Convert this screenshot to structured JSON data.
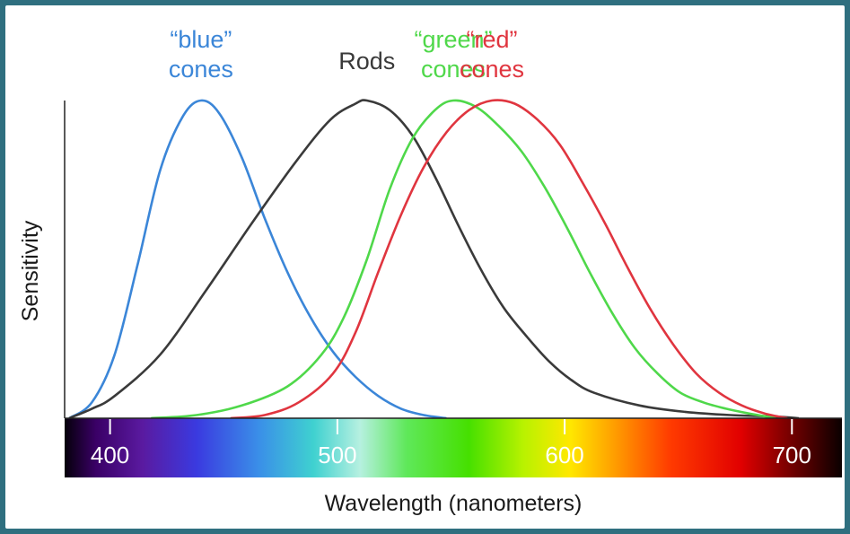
{
  "chart_data": {
    "type": "line",
    "title": "",
    "xlabel": "Wavelength (nanometers)",
    "ylabel": "Sensitivity",
    "xlim": [
      380,
      722
    ],
    "ylim": [
      0,
      1
    ],
    "grid": false,
    "legend": "labels-above-curves",
    "x_ticks": [
      400,
      500,
      600,
      700
    ],
    "x_tick_labels": [
      "400",
      "500",
      "600",
      "700"
    ],
    "spectrum_bar": true,
    "series": [
      {
        "key": "blue",
        "label_lines": [
          "“blue”",
          "cones"
        ],
        "color": "#3b86d8",
        "points": [
          [
            382,
            0
          ],
          [
            392,
            0.05
          ],
          [
            402,
            0.2
          ],
          [
            412,
            0.48
          ],
          [
            422,
            0.78
          ],
          [
            432,
            0.95
          ],
          [
            440,
            1.0
          ],
          [
            448,
            0.96
          ],
          [
            458,
            0.82
          ],
          [
            468,
            0.63
          ],
          [
            478,
            0.46
          ],
          [
            488,
            0.32
          ],
          [
            498,
            0.21
          ],
          [
            508,
            0.13
          ],
          [
            518,
            0.07
          ],
          [
            528,
            0.03
          ],
          [
            538,
            0.01
          ],
          [
            548,
            0
          ]
        ]
      },
      {
        "key": "rods",
        "label_lines": [
          "Rods"
        ],
        "color": "#3a3a3a",
        "points": [
          [
            382,
            0
          ],
          [
            392,
            0.03
          ],
          [
            402,
            0.07
          ],
          [
            422,
            0.2
          ],
          [
            442,
            0.4
          ],
          [
            462,
            0.61
          ],
          [
            482,
            0.81
          ],
          [
            497,
            0.94
          ],
          [
            508,
            0.99
          ],
          [
            513,
            1.0
          ],
          [
            523,
            0.97
          ],
          [
            533,
            0.89
          ],
          [
            543,
            0.76
          ],
          [
            553,
            0.61
          ],
          [
            563,
            0.47
          ],
          [
            573,
            0.35
          ],
          [
            583,
            0.26
          ],
          [
            593,
            0.18
          ],
          [
            603,
            0.12
          ],
          [
            613,
            0.08
          ],
          [
            633,
            0.04
          ],
          [
            653,
            0.02
          ],
          [
            673,
            0.01
          ],
          [
            693,
            0.005
          ],
          [
            703,
            0
          ]
        ]
      },
      {
        "key": "green",
        "label_lines": [
          "“green”",
          "cones"
        ],
        "color": "#4fd84a",
        "points": [
          [
            418,
            0
          ],
          [
            438,
            0.01
          ],
          [
            458,
            0.04
          ],
          [
            478,
            0.1
          ],
          [
            493,
            0.2
          ],
          [
            503,
            0.32
          ],
          [
            513,
            0.5
          ],
          [
            523,
            0.72
          ],
          [
            533,
            0.88
          ],
          [
            543,
            0.97
          ],
          [
            551,
            1.0
          ],
          [
            561,
            0.98
          ],
          [
            571,
            0.92
          ],
          [
            581,
            0.84
          ],
          [
            591,
            0.73
          ],
          [
            601,
            0.6
          ],
          [
            611,
            0.46
          ],
          [
            621,
            0.33
          ],
          [
            631,
            0.22
          ],
          [
            641,
            0.14
          ],
          [
            651,
            0.08
          ],
          [
            661,
            0.05
          ],
          [
            671,
            0.03
          ],
          [
            681,
            0.015
          ],
          [
            693,
            0
          ]
        ]
      },
      {
        "key": "red",
        "label_lines": [
          "“red”",
          "cones"
        ],
        "color": "#e0353f",
        "points": [
          [
            453,
            0
          ],
          [
            468,
            0.01
          ],
          [
            483,
            0.05
          ],
          [
            498,
            0.14
          ],
          [
            508,
            0.27
          ],
          [
            518,
            0.46
          ],
          [
            528,
            0.64
          ],
          [
            538,
            0.79
          ],
          [
            548,
            0.9
          ],
          [
            558,
            0.97
          ],
          [
            568,
            1.0
          ],
          [
            578,
            0.99
          ],
          [
            588,
            0.94
          ],
          [
            598,
            0.86
          ],
          [
            608,
            0.74
          ],
          [
            618,
            0.61
          ],
          [
            628,
            0.47
          ],
          [
            638,
            0.34
          ],
          [
            648,
            0.23
          ],
          [
            658,
            0.14
          ],
          [
            668,
            0.08
          ],
          [
            678,
            0.04
          ],
          [
            688,
            0.015
          ],
          [
            698,
            0
          ]
        ]
      }
    ]
  }
}
